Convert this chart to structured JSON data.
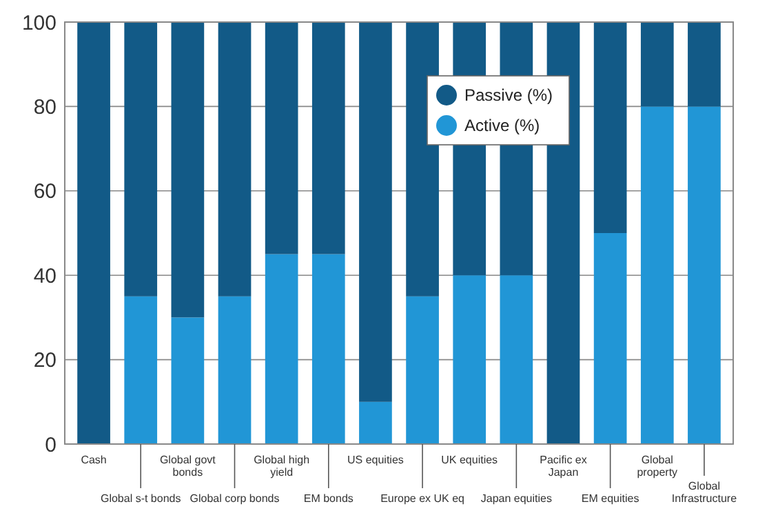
{
  "chart_data": {
    "type": "bar",
    "stacked": true,
    "categories": [
      "Cash",
      "Global s-t bonds",
      "Global govt bonds",
      "Global corp bonds",
      "Global high yield",
      "EM bonds",
      "US equities",
      "Europe ex UK eq",
      "UK equities",
      "Japan equities",
      "Pacific ex Japan",
      "EM equities",
      "Global property",
      "Global Infrastructure"
    ],
    "series": [
      {
        "name": "Active (%)",
        "color": "#2196d6",
        "values": [
          0,
          35,
          30,
          35,
          45,
          45,
          10,
          35,
          40,
          40,
          0,
          50,
          80,
          80
        ]
      },
      {
        "name": "Passive (%)",
        "color": "#125a87",
        "values": [
          100,
          65,
          70,
          65,
          55,
          55,
          90,
          65,
          60,
          60,
          100,
          50,
          20,
          20
        ]
      }
    ],
    "ylim": [
      0,
      100
    ],
    "yticks": [
      0,
      20,
      40,
      60,
      80,
      100
    ],
    "grid": "y",
    "legend": "top right"
  }
}
